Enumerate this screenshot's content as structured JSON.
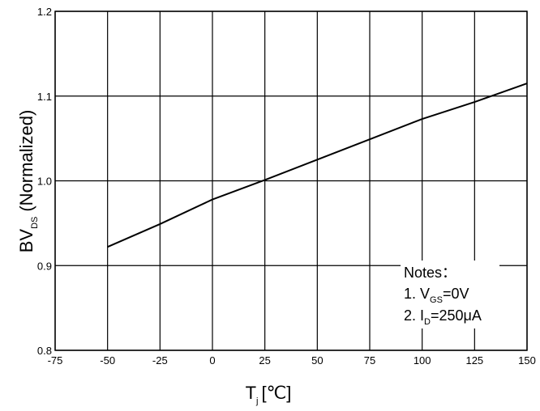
{
  "chart_data": {
    "type": "line",
    "title": "",
    "xlabel": {
      "main": "T",
      "sub": "j",
      "unit": "[℃]"
    },
    "ylabel": {
      "main": "BV",
      "sub": "DS",
      "rest": "(Normalized)"
    },
    "xlim": [
      -75,
      150
    ],
    "ylim": [
      0.8,
      1.2
    ],
    "x_ticks": [
      "-75",
      "-50",
      "-25",
      "0",
      "25",
      "50",
      "75",
      "100",
      "125",
      "150"
    ],
    "y_ticks": [
      "0.8",
      "0.9",
      "1.0",
      "1.1",
      "1.2"
    ],
    "grid": true,
    "series": [
      {
        "x": [
          -50,
          -25,
          0,
          25,
          50,
          75,
          100,
          125,
          150
        ],
        "y": [
          0.922,
          0.949,
          0.978,
          1.001,
          1.025,
          1.049,
          1.073,
          1.093,
          1.115
        ]
      }
    ],
    "notes": {
      "title": "Notes：",
      "line1": {
        "prefix": "1. V",
        "sub": "GS",
        "suffix": "=0V"
      },
      "line2": {
        "prefix": "2. I",
        "sub": "D",
        "suffix": "=250μA"
      }
    }
  }
}
